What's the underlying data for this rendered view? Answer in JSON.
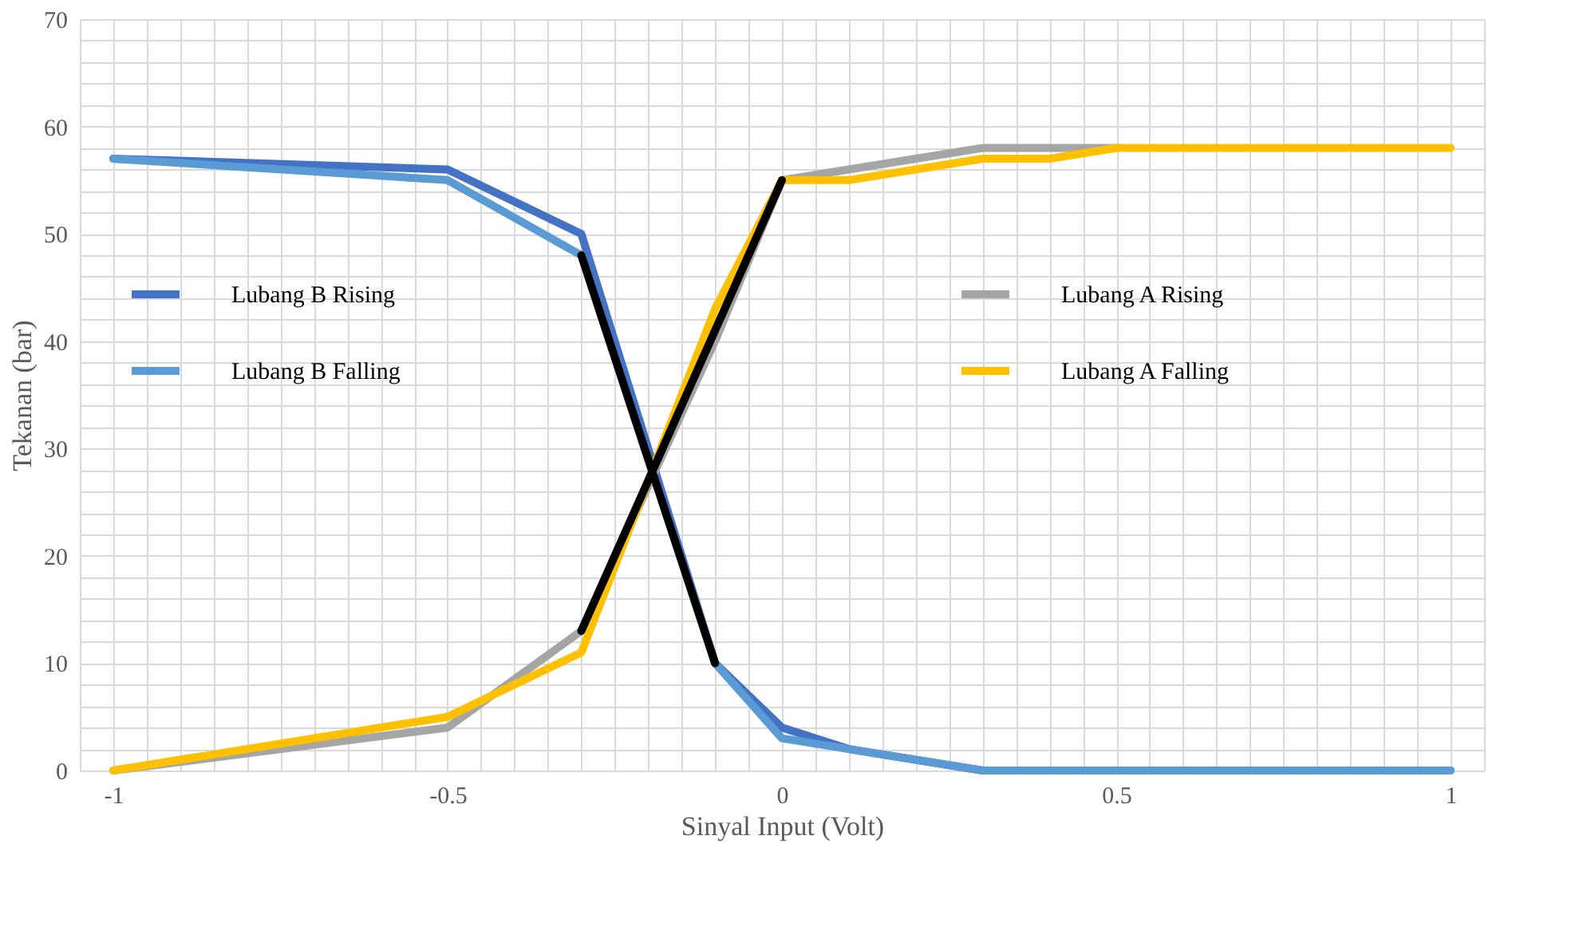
{
  "chart_data": {
    "type": "line",
    "xlabel": "Sinyal Input (Volt)",
    "ylabel": "Tekanan (bar)",
    "xlim": [
      -1.05,
      1.05
    ],
    "ylim": [
      0,
      70
    ],
    "xticks": [
      {
        "value": -1.05,
        "label": null
      },
      -1,
      {
        "value": -0.95,
        "label": null
      },
      {
        "value": -0.9,
        "label": null
      },
      {
        "value": -0.85,
        "label": null
      },
      {
        "value": -0.8,
        "label": null
      },
      {
        "value": -0.75,
        "label": null
      },
      {
        "value": -0.7,
        "label": null
      },
      {
        "value": -0.65,
        "label": null
      },
      {
        "value": -0.6,
        "label": null
      },
      {
        "value": -0.55,
        "label": null
      },
      -0.5,
      {
        "value": -0.45,
        "label": null
      },
      {
        "value": -0.4,
        "label": null
      },
      {
        "value": -0.35,
        "label": null
      },
      {
        "value": -0.3,
        "label": null
      },
      {
        "value": -0.25,
        "label": null
      },
      {
        "value": -0.2,
        "label": null
      },
      {
        "value": -0.15,
        "label": null
      },
      {
        "value": -0.1,
        "label": null
      },
      {
        "value": -0.05,
        "label": null
      },
      0,
      {
        "value": 0.05,
        "label": null
      },
      {
        "value": 0.1,
        "label": null
      },
      {
        "value": 0.15,
        "label": null
      },
      {
        "value": 0.2,
        "label": null
      },
      {
        "value": 0.25,
        "label": null
      },
      {
        "value": 0.3,
        "label": null
      },
      {
        "value": 0.35,
        "label": null
      },
      {
        "value": 0.4,
        "label": null
      },
      {
        "value": 0.45,
        "label": null
      },
      0.5,
      {
        "value": 0.55,
        "label": null
      },
      {
        "value": 0.6,
        "label": null
      },
      {
        "value": 0.65,
        "label": null
      },
      {
        "value": 0.7,
        "label": null
      },
      {
        "value": 0.75,
        "label": null
      },
      {
        "value": 0.8,
        "label": null
      },
      {
        "value": 0.85,
        "label": null
      },
      {
        "value": 0.9,
        "label": null
      },
      {
        "value": 0.95,
        "label": null
      },
      1,
      {
        "value": 1.05,
        "label": null
      }
    ],
    "yticks": [
      0,
      {
        "value": 2,
        "label": null
      },
      {
        "value": 4,
        "label": null
      },
      {
        "value": 6,
        "label": null
      },
      {
        "value": 8,
        "label": null
      },
      10,
      {
        "value": 12,
        "label": null
      },
      {
        "value": 14,
        "label": null
      },
      {
        "value": 16,
        "label": null
      },
      {
        "value": 18,
        "label": null
      },
      20,
      {
        "value": 22,
        "label": null
      },
      {
        "value": 24,
        "label": null
      },
      {
        "value": 26,
        "label": null
      },
      {
        "value": 28,
        "label": null
      },
      30,
      {
        "value": 32,
        "label": null
      },
      {
        "value": 34,
        "label": null
      },
      {
        "value": 36,
        "label": null
      },
      {
        "value": 38,
        "label": null
      },
      40,
      {
        "value": 42,
        "label": null
      },
      {
        "value": 44,
        "label": null
      },
      {
        "value": 46,
        "label": null
      },
      {
        "value": 48,
        "label": null
      },
      50,
      {
        "value": 52,
        "label": null
      },
      {
        "value": 54,
        "label": null
      },
      {
        "value": 56,
        "label": null
      },
      {
        "value": 58,
        "label": null
      },
      60,
      {
        "value": 62,
        "label": null
      },
      {
        "value": 64,
        "label": null
      },
      {
        "value": 66,
        "label": null
      },
      {
        "value": 68,
        "label": null
      },
      70
    ],
    "grid": true,
    "legend": "left",
    "line_style": "solid",
    "series": [
      {
        "name": "Lubang B Rising",
        "color": "#4472c4",
        "x": [
          -1,
          -0.5,
          -0.3,
          -0.1,
          0,
          0.1,
          0.3,
          1
        ],
        "values": [
          57,
          56,
          50,
          10,
          4,
          2,
          0,
          0
        ]
      },
      {
        "name": "Lubang B Falling",
        "color": "#5b9bd5",
        "x": [
          -1,
          -0.7,
          -0.5,
          -0.3,
          -0.1,
          0,
          0.1,
          0.3,
          1
        ],
        "values": [
          57,
          55.8,
          55,
          48,
          10,
          3,
          2,
          0,
          0
        ]
      },
      {
        "name": "Lubang A Rising",
        "color": "#a5a5a5",
        "x": [
          -1,
          -0.5,
          -0.3,
          -0.1,
          0,
          0.3,
          0.5
        ],
        "values": [
          0,
          4,
          13,
          40,
          55,
          58,
          58
        ]
      },
      {
        "name": "Lubang A Falling",
        "color": "#ffc000",
        "x": [
          -1,
          -0.5,
          -0.3,
          -0.1,
          0,
          0.1,
          0.3,
          0.4,
          0.5,
          1
        ],
        "values": [
          0,
          5,
          11,
          43,
          55,
          55,
          57,
          57,
          58,
          58
        ]
      },
      {
        "color": "#000000",
        "x": [
          -0.3,
          -0.1
        ],
        "values": [
          48,
          10
        ]
      },
      {
        "color": "#000000",
        "x": [
          -0.3,
          0
        ],
        "values": [
          13,
          55
        ]
      }
    ]
  }
}
